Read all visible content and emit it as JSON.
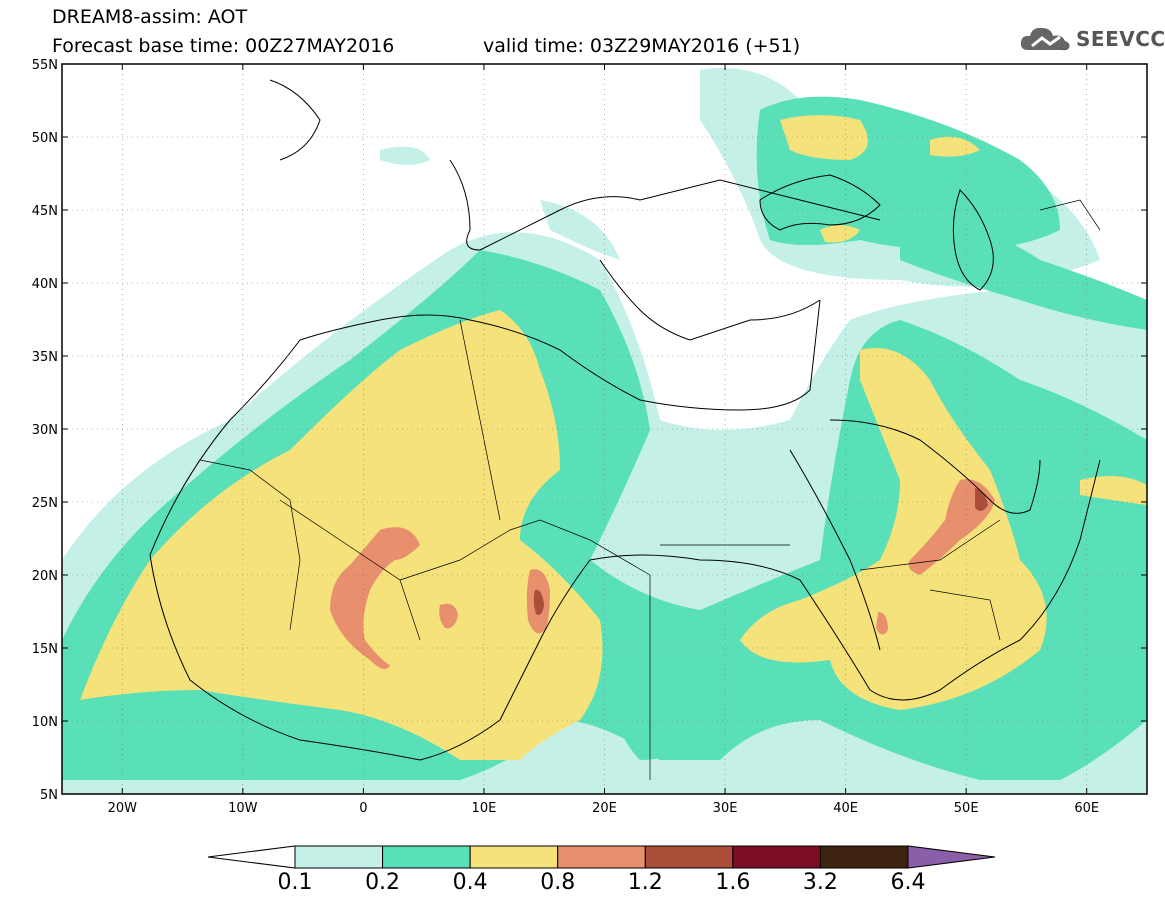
{
  "title": {
    "line1": "DREAM8-assim: AOT",
    "line2": "Forecast base time: 00Z27MAY2016",
    "line2b": "valid time: 03Z29MAY2016 (+51)"
  },
  "logo": {
    "text": "SEEVCCC"
  },
  "axes": {
    "lon_range": [
      -25,
      65
    ],
    "lat_range": [
      5,
      55
    ],
    "x_ticks": [
      {
        "lon": -20,
        "label": "20W"
      },
      {
        "lon": -10,
        "label": "10W"
      },
      {
        "lon": 0,
        "label": "0"
      },
      {
        "lon": 10,
        "label": "10E"
      },
      {
        "lon": 20,
        "label": "20E"
      },
      {
        "lon": 30,
        "label": "30E"
      },
      {
        "lon": 40,
        "label": "40E"
      },
      {
        "lon": 50,
        "label": "50E"
      },
      {
        "lon": 60,
        "label": "60E"
      }
    ],
    "y_ticks": [
      {
        "lat": 55,
        "label": "55N"
      },
      {
        "lat": 50,
        "label": "50N"
      },
      {
        "lat": 45,
        "label": "45N"
      },
      {
        "lat": 40,
        "label": "40N"
      },
      {
        "lat": 35,
        "label": "35N"
      },
      {
        "lat": 30,
        "label": "30N"
      },
      {
        "lat": 25,
        "label": "25N"
      },
      {
        "lat": 20,
        "label": "20N"
      },
      {
        "lat": 15,
        "label": "15N"
      },
      {
        "lat": 10,
        "label": "10N"
      },
      {
        "lat": 5,
        "label": "5N"
      }
    ],
    "grid": "dotted"
  },
  "colorbar": {
    "labels": [
      "0.1",
      "0.2",
      "0.4",
      "0.8",
      "1.2",
      "1.6",
      "3.2",
      "6.4"
    ],
    "colors": [
      "#c4f0e8",
      "#59e0b8",
      "#f5e27a",
      "#e8906e",
      "#aa4e3a",
      "#7b0d25",
      "#3d2310",
      "#8a5fa8"
    ]
  }
}
